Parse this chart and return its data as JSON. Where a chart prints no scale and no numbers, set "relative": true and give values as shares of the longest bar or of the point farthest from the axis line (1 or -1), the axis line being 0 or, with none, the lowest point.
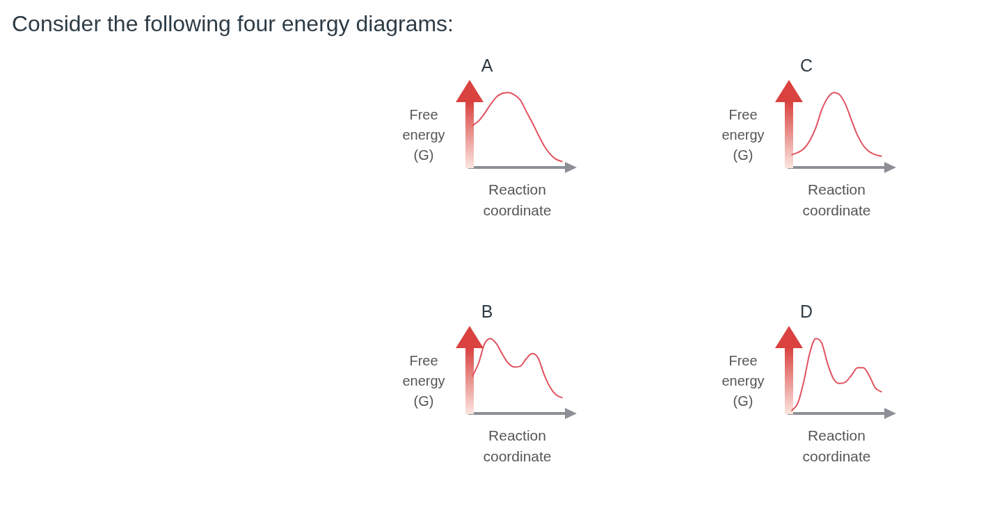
{
  "chart_data": [
    {
      "type": "line",
      "title": "A",
      "xlabel": "Reaction coordinate",
      "ylabel": "Free energy (G)",
      "annotations": [
        "Consider the following four energy diagrams:"
      ],
      "relative": true,
      "tick_labels": false,
      "categories": [
        null,
        null,
        null,
        null,
        null,
        null,
        null,
        null,
        null,
        null,
        null,
        null,
        null,
        null,
        null,
        null
      ],
      "series": [
        {
          "color": "#e0515e",
          "values": [
            0.56,
            0.62,
            0.72,
            0.84,
            0.94,
            0.99,
            1,
            0.97,
            0.9,
            0.75,
            0.6,
            0.44,
            0.29,
            0.18,
            0.11,
            0.08
          ]
        }
      ]
    },
    {
      "type": "line",
      "title": "C",
      "xlabel": "Reaction coordinate",
      "ylabel": "Free energy (G)",
      "relative": true,
      "tick_labels": false,
      "categories": [
        null,
        null,
        null,
        null,
        null,
        null,
        null,
        null,
        null,
        null,
        null,
        null,
        null,
        null,
        null,
        null
      ],
      "series": [
        {
          "color": "#e0515e",
          "values": [
            0.17,
            0.2,
            0.25,
            0.36,
            0.53,
            0.77,
            0.93,
            1,
            0.97,
            0.84,
            0.63,
            0.43,
            0.29,
            0.21,
            0.17,
            0.15
          ]
        }
      ]
    },
    {
      "type": "line",
      "title": "B",
      "xlabel": "Reaction coordinate",
      "ylabel": "Free energy (G)",
      "relative": true,
      "tick_labels": false,
      "categories": [
        null,
        null,
        null,
        null,
        null,
        null,
        null,
        null,
        null,
        null,
        null,
        null,
        null,
        null,
        null,
        null
      ],
      "series": [
        {
          "color": "#e0515e",
          "values": [
            0.5,
            0.67,
            0.93,
            1,
            0.93,
            0.79,
            0.67,
            0.62,
            0.63,
            0.73,
            0.8,
            0.74,
            0.52,
            0.35,
            0.25,
            0.21
          ]
        }
      ]
    },
    {
      "type": "line",
      "title": "D",
      "xlabel": "Reaction coordinate",
      "ylabel": "Free energy (G)",
      "relative": true,
      "tick_labels": false,
      "categories": [
        null,
        null,
        null,
        null,
        null,
        null,
        null,
        null,
        null,
        null,
        null,
        null,
        null,
        null,
        null,
        null
      ],
      "series": [
        {
          "color": "#e0515e",
          "values": [
            0.04,
            0.14,
            0.43,
            0.81,
            1,
            0.94,
            0.66,
            0.46,
            0.4,
            0.42,
            0.51,
            0.61,
            0.61,
            0.5,
            0.34,
            0.29
          ]
        }
      ]
    }
  ]
}
